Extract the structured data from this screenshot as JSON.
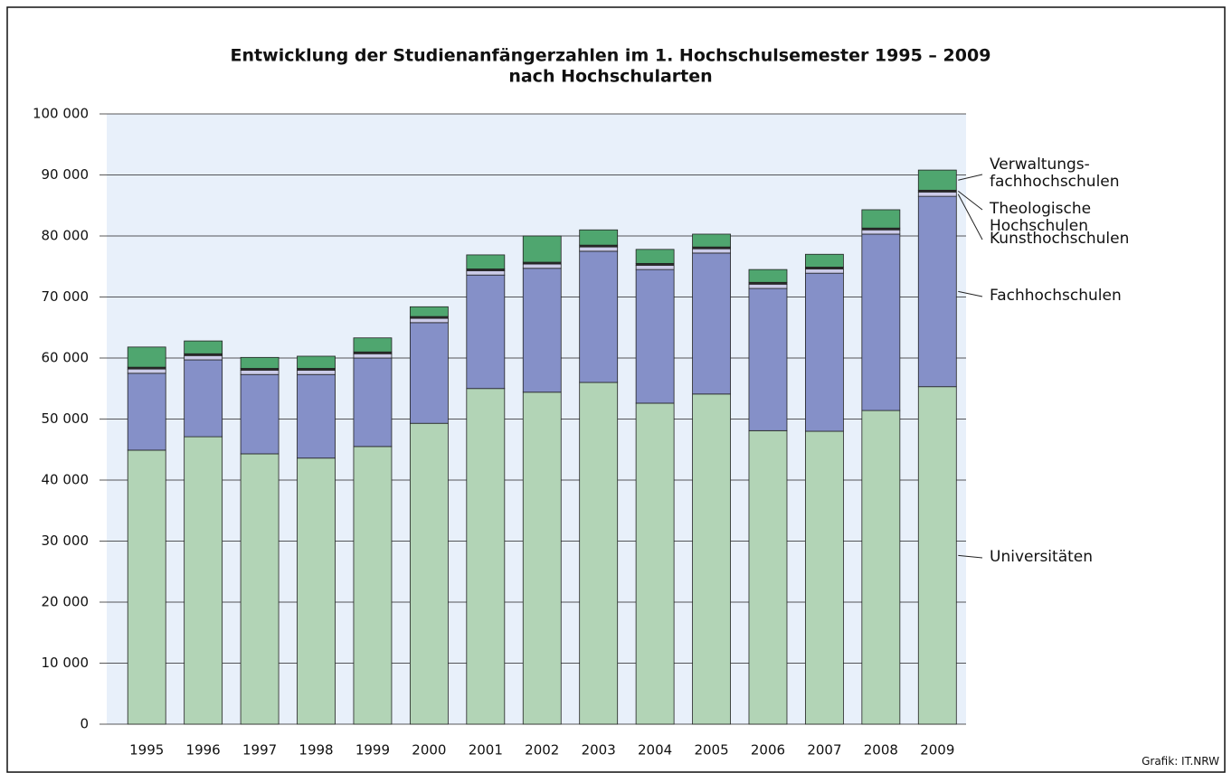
{
  "chart_data": {
    "type": "stacked-bar",
    "title": "Entwicklung der Studienanfängerzahlen im 1. Hochschulsemester 1995 – 2009",
    "subtitle": "nach Hochschularten",
    "source": "Grafik: IT.NRW",
    "categories": [
      "1995",
      "1996",
      "1997",
      "1998",
      "1999",
      "2000",
      "2001",
      "2002",
      "2003",
      "2004",
      "2005",
      "2006",
      "2007",
      "2008",
      "2009"
    ],
    "series": [
      {
        "name": "Universitäten",
        "color": "#b2d4b6",
        "values": [
          44900,
          47100,
          44300,
          43600,
          45500,
          49300,
          55000,
          54400,
          56000,
          52600,
          54100,
          48100,
          48000,
          51400,
          55300
        ]
      },
      {
        "name": "Fachhochschulen",
        "color": "#8590c8",
        "values": [
          12600,
          12600,
          13000,
          13700,
          14500,
          16500,
          18600,
          20300,
          21500,
          21900,
          23100,
          23300,
          25900,
          28900,
          31200
        ]
      },
      {
        "name": "Kunsthochschulen",
        "color": "#cbcbe8",
        "values": [
          700,
          700,
          700,
          700,
          700,
          700,
          700,
          700,
          700,
          700,
          700,
          700,
          700,
          700,
          700
        ]
      },
      {
        "name": "Theologische Hochschulen",
        "color": "#2b2b2b",
        "values": [
          300,
          300,
          300,
          300,
          300,
          300,
          300,
          300,
          300,
          300,
          300,
          300,
          300,
          300,
          300
        ]
      },
      {
        "name": "Verwaltungs-fachhochschulen",
        "color": "#4fa66f",
        "values": [
          3300,
          2100,
          1800,
          2000,
          2300,
          1600,
          2300,
          4300,
          2500,
          2300,
          2100,
          2100,
          2100,
          3000,
          3300
        ]
      }
    ],
    "ylim": [
      0,
      100000
    ],
    "yticks": [
      {
        "value": 0,
        "label": "0"
      },
      {
        "value": 10000,
        "label": "10 000"
      },
      {
        "value": 20000,
        "label": "20 000"
      },
      {
        "value": 30000,
        "label": "30 000"
      },
      {
        "value": 40000,
        "label": "40 000"
      },
      {
        "value": 50000,
        "label": "50 000"
      },
      {
        "value": 60000,
        "label": "60 000"
      },
      {
        "value": 70000,
        "label": "70 000"
      },
      {
        "value": 80000,
        "label": "80 000"
      },
      {
        "value": 90000,
        "label": "90 000"
      },
      {
        "value": 100000,
        "label": "100 000"
      }
    ],
    "grid": true,
    "background": "#e8f0fa"
  }
}
